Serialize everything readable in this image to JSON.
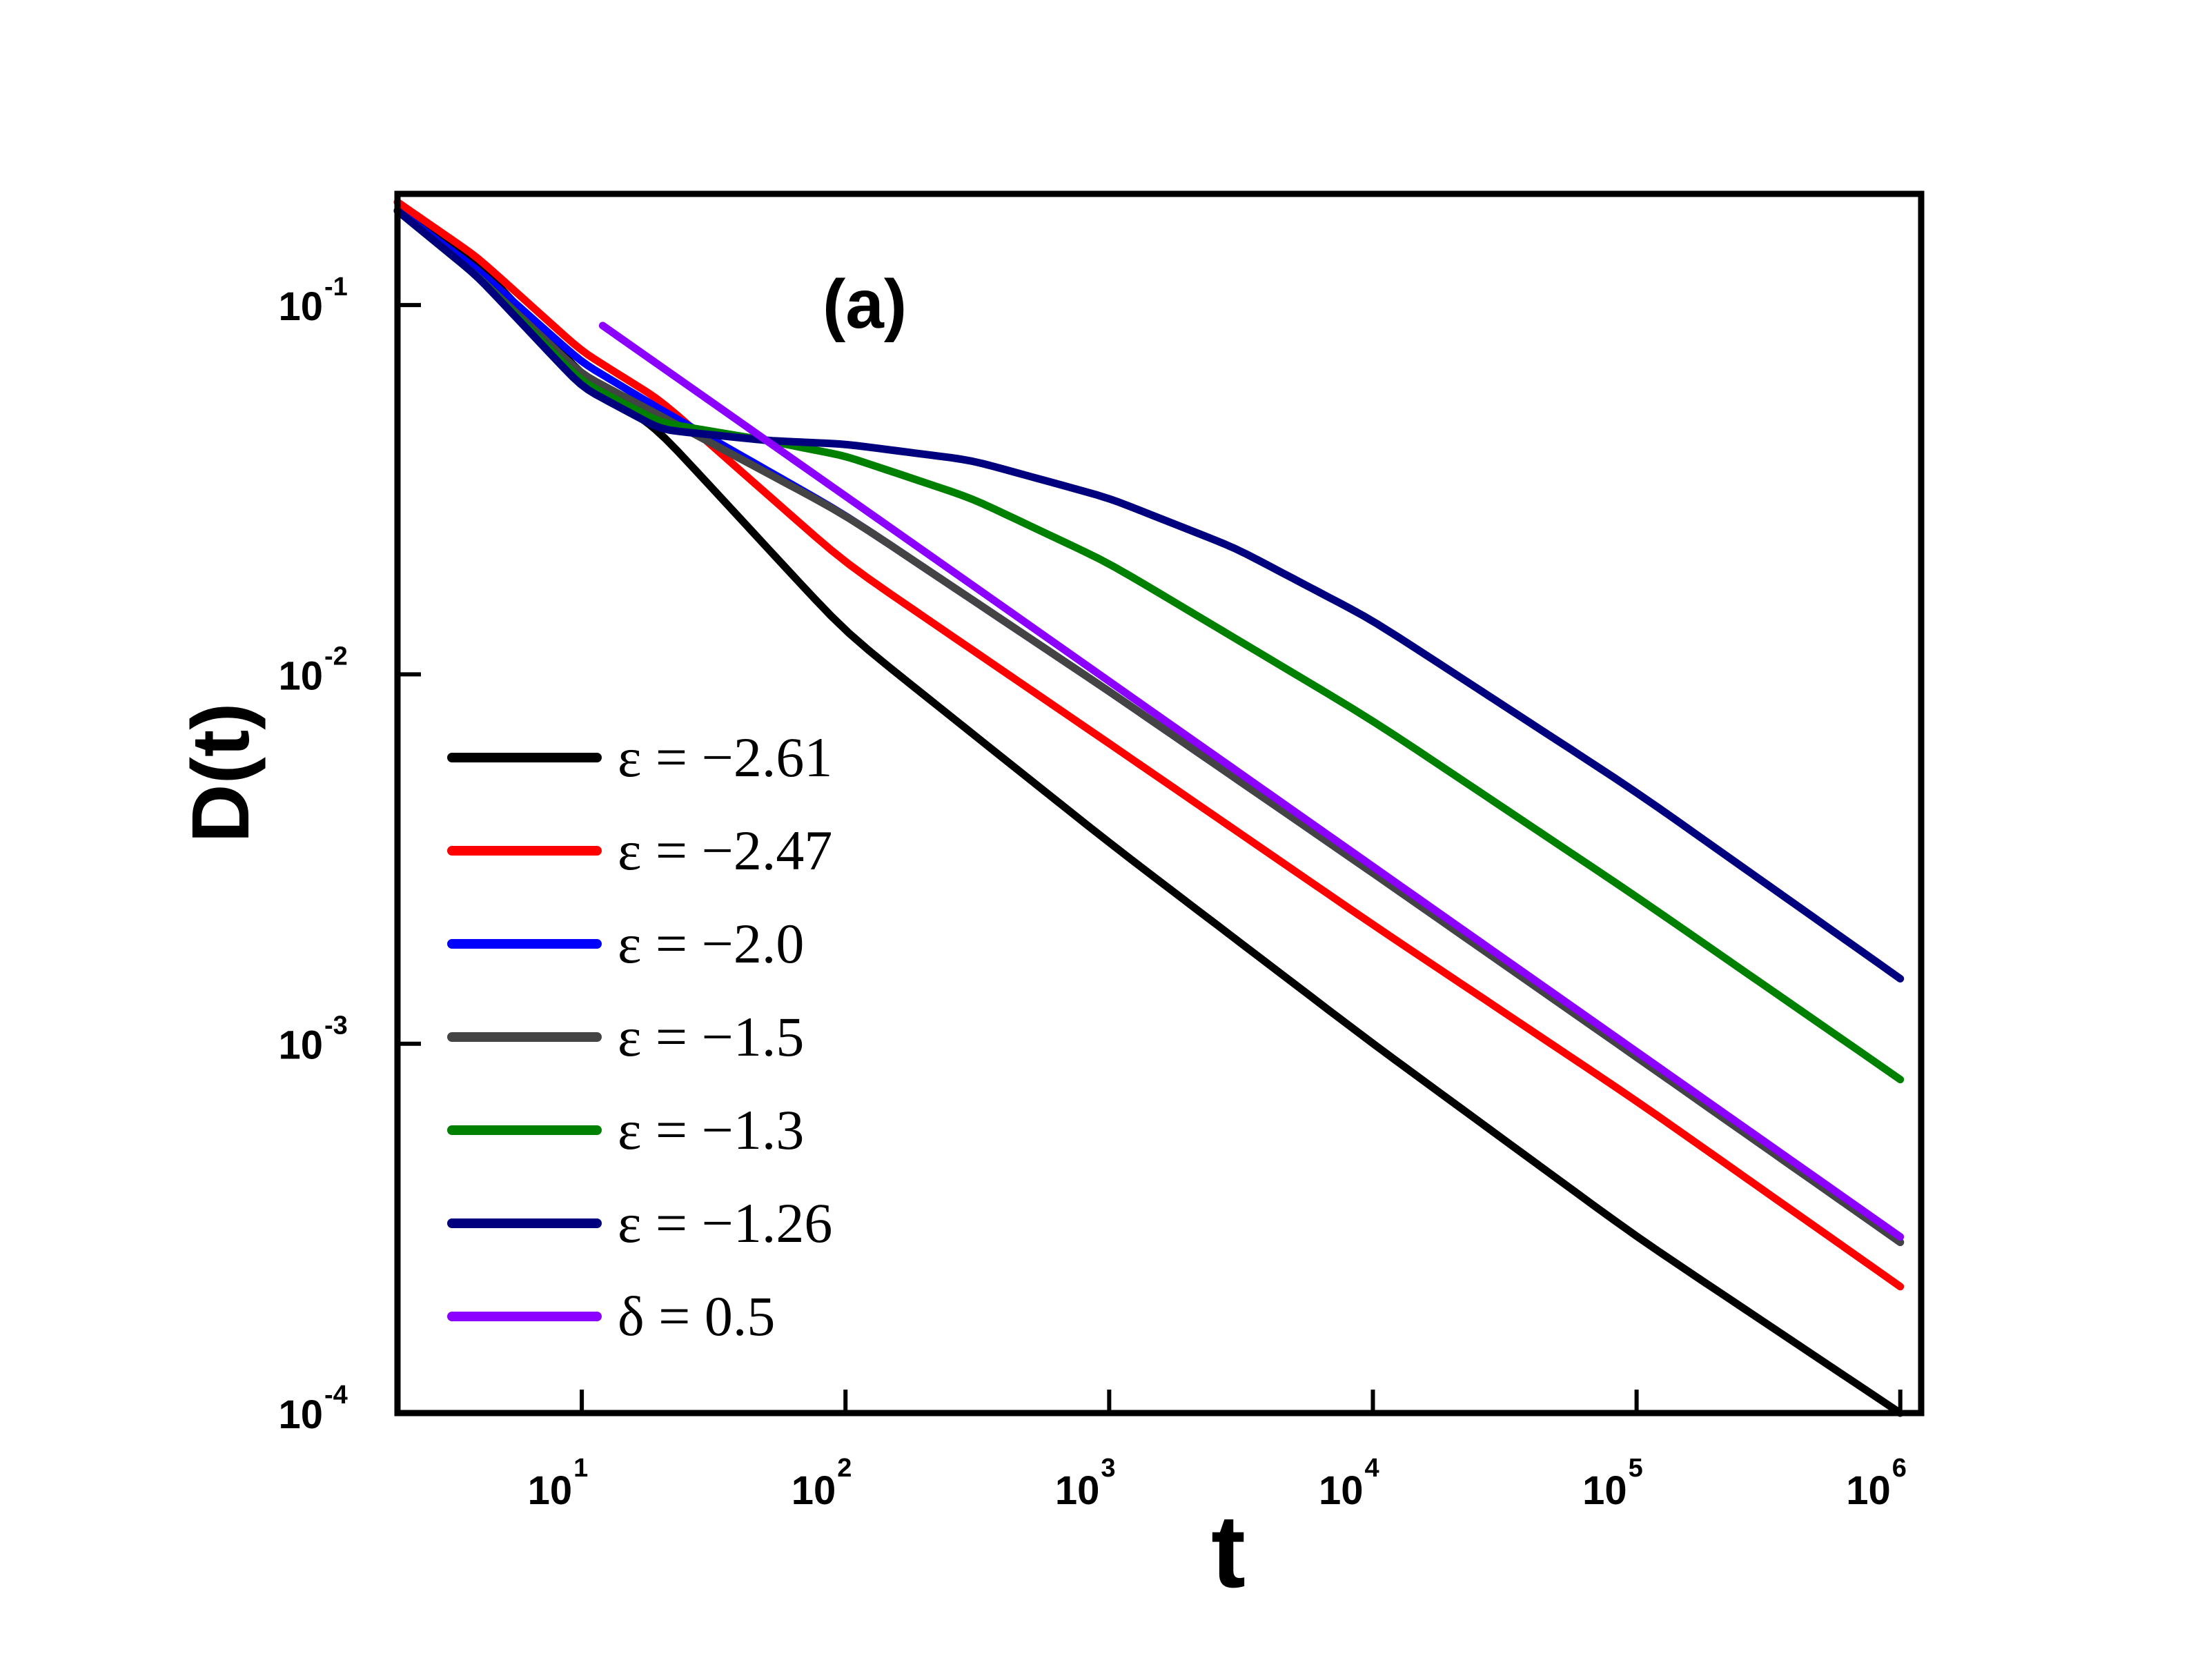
{
  "chart_data": {
    "type": "line",
    "panel_label": "(a)",
    "xlabel": "t",
    "ylabel": "D(t)",
    "xscale": "log",
    "yscale": "log",
    "xlim": [
      2,
      1200000
    ],
    "ylim": [
      0.0001,
      0.2
    ],
    "x_ticks": [
      {
        "value": 10,
        "base": "10",
        "exp": "1"
      },
      {
        "value": 100,
        "base": "10",
        "exp": "2"
      },
      {
        "value": 1000,
        "base": "10",
        "exp": "3"
      },
      {
        "value": 10000,
        "base": "10",
        "exp": "4"
      },
      {
        "value": 100000,
        "base": "10",
        "exp": "5"
      },
      {
        "value": 1000000,
        "base": "10",
        "exp": "6"
      }
    ],
    "y_ticks": [
      {
        "value": 0.1,
        "base": "10",
        "exp": "-1"
      },
      {
        "value": 0.01,
        "base": "10",
        "exp": "-2"
      },
      {
        "value": 0.001,
        "base": "10",
        "exp": "-3"
      },
      {
        "value": 0.0001,
        "base": "10",
        "exp": "-4"
      }
    ],
    "legend_position": "lower-left",
    "series": [
      {
        "name": "ε = −2.61",
        "color": "#000000",
        "x": [
          2,
          4,
          10,
          20,
          100,
          1000,
          10000,
          100000,
          1000000
        ],
        "y": [
          0.18,
          0.13,
          0.065,
          0.045,
          0.013,
          0.0035,
          0.001,
          0.0003,
          0.0001
        ]
      },
      {
        "name": "ε = −2.47",
        "color": "#ff0000",
        "x": [
          2,
          4,
          10,
          20,
          100,
          1000,
          10000,
          100000,
          1000000
        ],
        "y": [
          0.19,
          0.135,
          0.075,
          0.055,
          0.02,
          0.0065,
          0.0021,
          0.0007,
          0.00022
        ]
      },
      {
        "name": "ε = −2.0",
        "color": "#0000ff",
        "x": [
          2,
          4,
          10,
          20,
          100,
          1000,
          10000,
          100000,
          1000000
        ],
        "y": [
          0.18,
          0.125,
          0.07,
          0.052,
          0.027,
          0.009,
          0.0029,
          0.00092,
          0.00029
        ]
      },
      {
        "name": "ε = −1.5",
        "color": "#444444",
        "x": [
          2,
          4,
          10,
          20,
          100,
          1000,
          10000,
          100000,
          1000000
        ],
        "y": [
          0.18,
          0.12,
          0.065,
          0.05,
          0.027,
          0.009,
          0.0029,
          0.00092,
          0.00029
        ]
      },
      {
        "name": "ε = −1.3",
        "color": "#008000",
        "x": [
          2,
          4,
          10,
          20,
          50,
          100,
          300,
          1000,
          10000,
          100000,
          1000000
        ],
        "y": [
          0.18,
          0.12,
          0.062,
          0.048,
          0.043,
          0.039,
          0.03,
          0.02,
          0.0075,
          0.0025,
          0.0008
        ]
      },
      {
        "name": "ε = −1.26",
        "color": "#00007f",
        "x": [
          2,
          4,
          10,
          20,
          50,
          100,
          300,
          1000,
          3000,
          10000,
          100000,
          1000000
        ],
        "y": [
          0.18,
          0.12,
          0.06,
          0.046,
          0.043,
          0.042,
          0.038,
          0.03,
          0.022,
          0.014,
          0.0048,
          0.0015
        ]
      },
      {
        "name": "δ = 0.5",
        "color": "#8b00ff",
        "x": [
          12,
          1000000
        ],
        "y": [
          0.088,
          0.0003
        ]
      }
    ]
  }
}
